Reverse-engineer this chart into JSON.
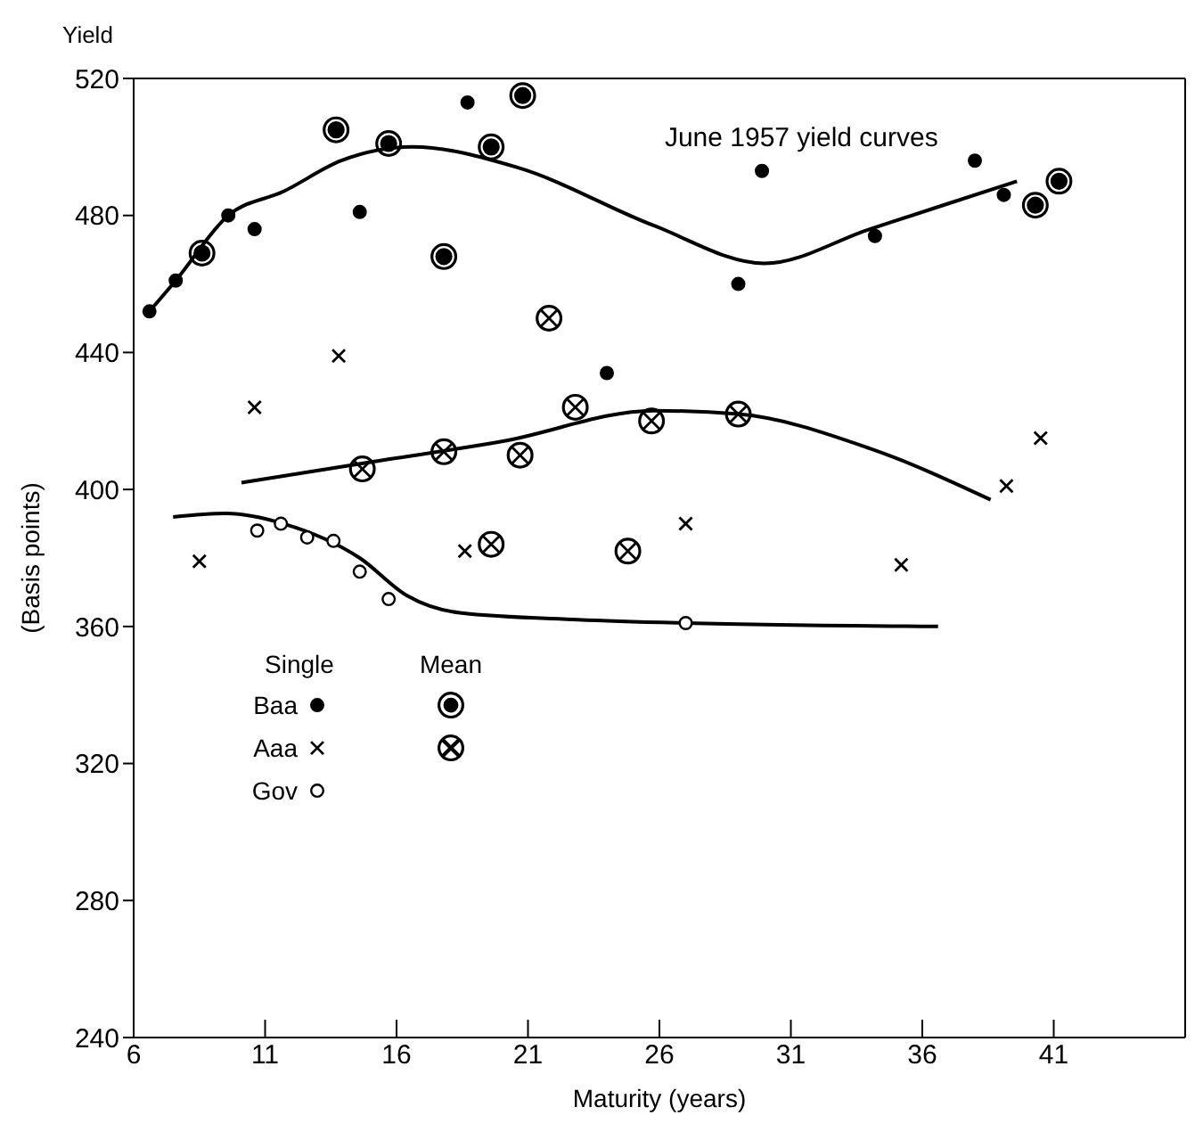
{
  "chart_data": {
    "type": "scatter",
    "title": "June 1957 yield curves",
    "xlabel": "Maturity (years)",
    "ylabel": "(Basis points)",
    "annotations": [
      "Yield",
      "Single",
      "Mean"
    ],
    "xlim": [
      6,
      46
    ],
    "xticks": [
      6,
      11,
      16,
      21,
      26,
      31,
      36,
      41
    ],
    "ylim": [
      240,
      520
    ],
    "yticks": [
      240,
      280,
      320,
      360,
      400,
      440,
      480,
      520
    ],
    "grid": false,
    "legend": "bottom left",
    "series": [
      {
        "name": "Baa",
        "color": "#000000",
        "marker": "circle",
        "x": [
          6.6,
          7.6,
          9.6,
          10.6,
          14.6,
          18.7,
          24.0,
          29.9,
          29.0,
          34.2,
          38.0,
          39.1
        ],
        "values": [
          452,
          461,
          480,
          476,
          481,
          513,
          434,
          493,
          460,
          474,
          496,
          486
        ]
      },
      {
        "name": "Aaa",
        "color": "#000000",
        "marker": "cross",
        "x": [
          13.8,
          10.6,
          8.5,
          18.6,
          27.0,
          35.2,
          39.2,
          40.5
        ],
        "values": [
          439,
          424,
          379,
          382,
          390,
          378,
          401,
          415
        ]
      },
      {
        "name": "Gov",
        "color": "#ffffff",
        "marker": "circle",
        "x": [
          10.7,
          11.6,
          12.6,
          13.6,
          14.6,
          15.7,
          27.0
        ],
        "values": [
          388,
          390,
          386,
          385,
          376,
          368,
          361
        ]
      },
      {
        "color": "#000000",
        "x": [
          8.6,
          13.7,
          15.7,
          20.8,
          19.6,
          17.8,
          40.3,
          41.2
        ],
        "values": [
          469,
          505,
          501,
          515,
          500,
          468,
          483,
          490
        ]
      },
      {
        "color": "#000000",
        "x": [
          14.7,
          17.8,
          20.7,
          21.8,
          22.8,
          25.7,
          29.0,
          19.6,
          24.8
        ],
        "values": [
          406,
          411,
          410,
          450,
          424,
          420,
          422,
          384,
          382
        ]
      },
      {
        "type": "line",
        "color": "#000000",
        "marker": "none",
        "x": [
          6.6,
          7.6,
          9.6,
          11.7,
          13.9,
          16.6,
          20.6,
          25.8,
          30.0,
          34.0,
          39.6
        ],
        "values": [
          452,
          461,
          480,
          487,
          496,
          500,
          494,
          477,
          466,
          476,
          490
        ]
      },
      {
        "type": "line",
        "color": "#000000",
        "marker": "none",
        "x": [
          10.1,
          15.0,
          20.0,
          25.8,
          29.0,
          34.0,
          38.6
        ],
        "values": [
          402,
          408,
          414,
          423,
          422,
          412,
          397
        ]
      },
      {
        "type": "line",
        "color": "#000000",
        "marker": "none",
        "x": [
          7.5,
          9.5,
          11.7,
          14.6,
          16.4,
          18.4,
          22.9,
          27.0,
          36.6
        ],
        "values": [
          392,
          393,
          390,
          380,
          369,
          364,
          362,
          361,
          360
        ]
      }
    ]
  }
}
